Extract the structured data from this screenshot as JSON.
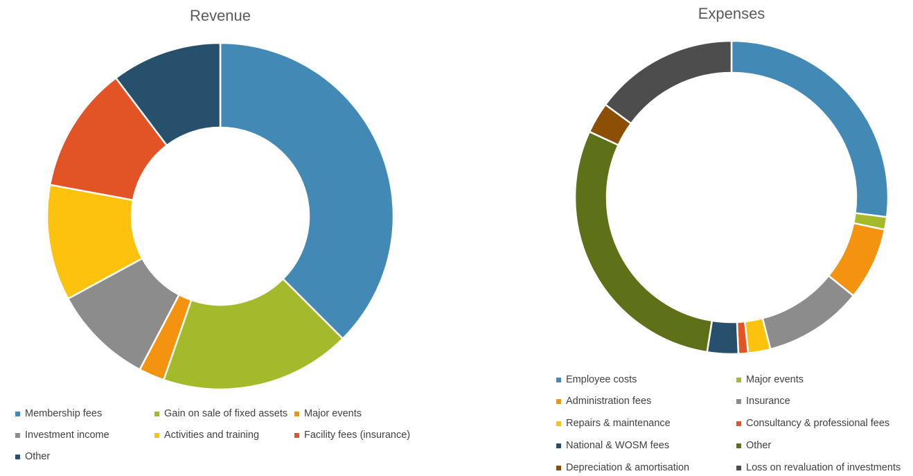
{
  "chart_data": [
    {
      "type": "pie",
      "title": "Revenue",
      "categories": [
        "Membership fees",
        "Gain on sale of fixed assets",
        "Major events",
        "Investment income",
        "Activities and training",
        "Facility fees (insurance)",
        "Other"
      ],
      "values": [
        37.5,
        17.8,
        2.4,
        9.4,
        10.8,
        11.8,
        10.3
      ],
      "colors": [
        "#4289B5",
        "#A5BA2B",
        "#F4930F",
        "#8C8C8C",
        "#FDC20E",
        "#E25425",
        "#26506B"
      ],
      "legend_position": "bottom"
    },
    {
      "type": "pie",
      "title": "Expenses",
      "categories": [
        "Employee costs",
        "Major events",
        "Administration fees",
        "Insurance",
        "Repairs & maintenance",
        "Consultancy & professional fees",
        "National & WOSM fees",
        "Other",
        "Depreciation & amortisation",
        "Loss on revaluation of investments"
      ],
      "values": [
        27.0,
        1.3,
        7.5,
        10.2,
        2.3,
        1.0,
        3.2,
        29.4,
        3.2,
        14.9
      ],
      "colors": [
        "#4289B5",
        "#A5BA2B",
        "#F4930F",
        "#8C8C8C",
        "#FDC20E",
        "#E25425",
        "#26506B",
        "#5E7018",
        "#8C4F05",
        "#4D4D4D"
      ],
      "legend_position": "bottom"
    }
  ]
}
